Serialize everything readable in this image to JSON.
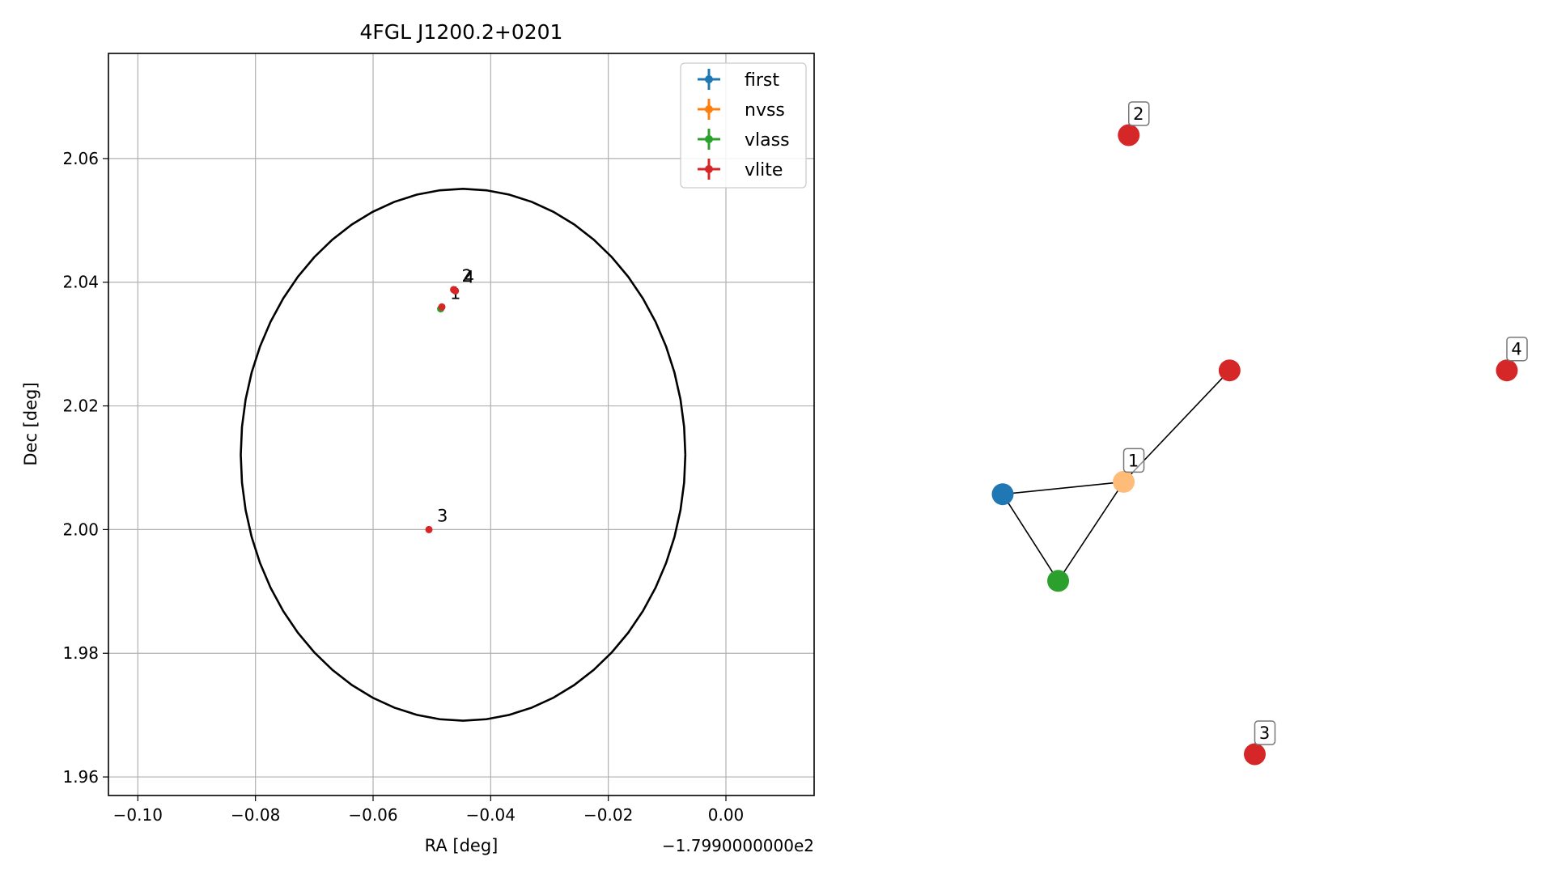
{
  "chart_data": [
    {
      "type": "scatter",
      "title": "4FGL J1200.2+0201",
      "xlabel": "RA [deg]",
      "ylabel": "Dec [deg]",
      "x_offset_label": "−1.7990000000e2",
      "xlim": [
        -0.105,
        0.015
      ],
      "ylim": [
        1.957,
        2.077
      ],
      "xticks": [
        -0.1,
        -0.08,
        -0.06,
        -0.04,
        -0.02,
        0.0
      ],
      "xtick_labels": [
        "−0.10",
        "−0.08",
        "−0.06",
        "−0.04",
        "−0.02",
        "0.00"
      ],
      "yticks": [
        1.96,
        1.98,
        2.0,
        2.02,
        2.04,
        2.06
      ],
      "ytick_labels": [
        "1.96",
        "1.98",
        "2.00",
        "2.02",
        "2.04",
        "2.06"
      ],
      "grid": true,
      "legend_position": "top-right",
      "ellipse": {
        "center": [
          -0.0447,
          2.0121
        ],
        "semi_major_x": 0.0378,
        "semi_major_y": 0.043,
        "color": "#000000"
      },
      "series": [
        {
          "name": "first",
          "color": "#1f77b4",
          "points": []
        },
        {
          "name": "nvss",
          "color": "#ff7f0e",
          "points": []
        },
        {
          "name": "vlass",
          "color": "#2ca02c",
          "points": [
            {
              "x": -0.0485,
              "y": 2.0357
            }
          ]
        },
        {
          "name": "vlite",
          "color": "#d62728",
          "points": [
            {
              "x": -0.0483,
              "y": 2.036,
              "label": "1"
            },
            {
              "x": -0.0463,
              "y": 2.0388,
              "label": "2"
            },
            {
              "x": -0.0505,
              "y": 2.0,
              "label": "3"
            },
            {
              "x": -0.046,
              "y": 2.0386,
              "label": "4"
            }
          ]
        }
      ]
    },
    {
      "type": "network",
      "nodes": [
        {
          "id": "first",
          "color": "#1f77b4",
          "pos": [
            0.0,
            0.42
          ]
        },
        {
          "id": "nvss",
          "color": "#ffbb78",
          "pos": [
            0.24,
            0.44
          ],
          "label": "1"
        },
        {
          "id": "vlass",
          "color": "#2ca02c",
          "pos": [
            0.11,
            0.28
          ]
        },
        {
          "id": "vlite-1",
          "color": "#d62728",
          "pos": [
            0.45,
            0.62
          ]
        },
        {
          "id": "vlite-2",
          "color": "#d62728",
          "pos": [
            0.25,
            1.0
          ],
          "label": "2"
        },
        {
          "id": "vlite-3",
          "color": "#d62728",
          "pos": [
            0.5,
            0.0
          ],
          "label": "3"
        },
        {
          "id": "vlite-4",
          "color": "#d62728",
          "pos": [
            1.0,
            0.62
          ],
          "label": "4"
        }
      ],
      "edges": [
        [
          "first",
          "nvss"
        ],
        [
          "first",
          "vlass"
        ],
        [
          "vlass",
          "nvss"
        ],
        [
          "nvss",
          "vlite-1"
        ]
      ]
    }
  ]
}
